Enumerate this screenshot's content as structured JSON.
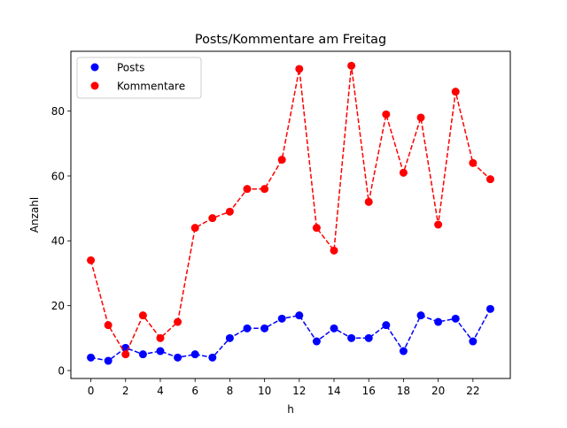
{
  "chart_data": {
    "type": "line",
    "title": "Posts/Kommentare am Freitag",
    "xlabel": "h",
    "ylabel": "Anzahl",
    "x": [
      0,
      1,
      2,
      3,
      4,
      5,
      6,
      7,
      8,
      9,
      10,
      11,
      12,
      13,
      14,
      15,
      16,
      17,
      18,
      19,
      20,
      21,
      22,
      23
    ],
    "xticks": [
      0,
      2,
      4,
      6,
      8,
      10,
      12,
      14,
      16,
      18,
      20,
      22
    ],
    "yticks": [
      0,
      20,
      40,
      60,
      80
    ],
    "xlim": [
      -1.15,
      24.15
    ],
    "ylim": [
      -2.45,
      98.45
    ],
    "grid": false,
    "legend_position": "upper left",
    "series": [
      {
        "name": "Posts",
        "color": "#0000ff",
        "linestyle": "dashed",
        "marker": "circle",
        "values": [
          4,
          3,
          7,
          5,
          6,
          4,
          5,
          4,
          10,
          13,
          13,
          16,
          17,
          9,
          13,
          10,
          10,
          14,
          6,
          17,
          15,
          16,
          9,
          19
        ]
      },
      {
        "name": "Kommentare",
        "color": "#ff0000",
        "linestyle": "dashed",
        "marker": "circle",
        "values": [
          34,
          14,
          5,
          17,
          10,
          15,
          44,
          47,
          49,
          56,
          56,
          65,
          93,
          44,
          37,
          94,
          52,
          79,
          61,
          78,
          45,
          86,
          64,
          59
        ]
      }
    ]
  }
}
